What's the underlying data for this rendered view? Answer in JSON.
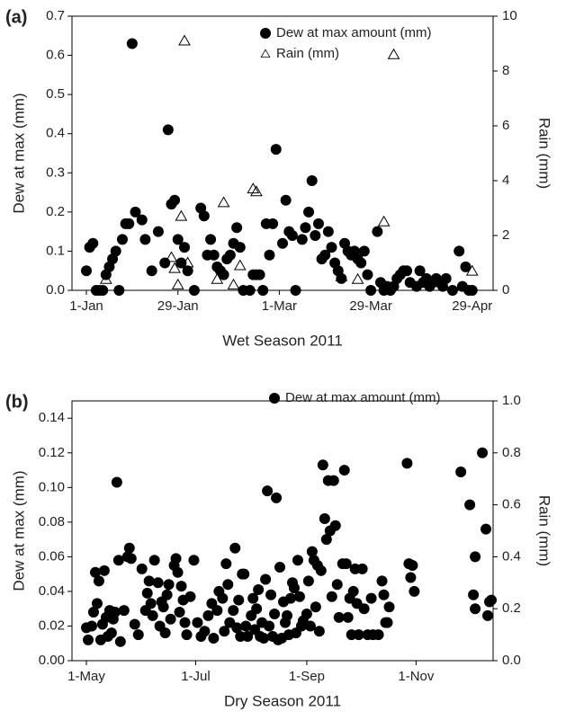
{
  "chart_data": [
    {
      "type": "scatter",
      "panel_label": "(a)",
      "x_label": "Wet Season 2011",
      "y_label": "Dew at max (mm)",
      "y2_label": "Rain (mm)",
      "xlim": [
        "2011-01-01",
        "2011-05-01"
      ],
      "xticks": [
        {
          "value": "2011-01-01",
          "label": "1-Jan"
        },
        {
          "value": "2011-01-29",
          "label": "29-Jan"
        },
        {
          "value": "2011-03-01",
          "label": "1-Mar"
        },
        {
          "value": "2011-03-29",
          "label": "29-Mar"
        },
        {
          "value": "2011-04-29",
          "label": "29-Apr"
        }
      ],
      "ylim": [
        0,
        0.7
      ],
      "yticks": [
        {
          "value": 0,
          "label": "0.0"
        },
        0.1,
        0.2,
        0.3,
        0.4,
        0.5,
        0.6,
        0.7
      ],
      "y2lim": [
        0,
        10
      ],
      "y2ticks": [
        0,
        2,
        4,
        6,
        8,
        10
      ],
      "series": [
        {
          "name": "Dew at max amount (mm)",
          "color": "#000000",
          "marker": "circle",
          "x": [
            "2011-01-01",
            "2011-01-02",
            "2011-01-03",
            "2011-01-04",
            "2011-01-05",
            "2011-01-06",
            "2011-01-07",
            "2011-01-08",
            "2011-01-09",
            "2011-01-10",
            "2011-01-11",
            "2011-01-12",
            "2011-01-13",
            "2011-01-14",
            "2011-01-15",
            "2011-01-16",
            "2011-01-18",
            "2011-01-19",
            "2011-01-21",
            "2011-01-23",
            "2011-01-25",
            "2011-01-26",
            "2011-01-27",
            "2011-01-28",
            "2011-01-29",
            "2011-01-30",
            "2011-01-31",
            "2011-02-01",
            "2011-02-03",
            "2011-02-05",
            "2011-02-06",
            "2011-02-07",
            "2011-02-08",
            "2011-02-09",
            "2011-02-10",
            "2011-02-11",
            "2011-02-12",
            "2011-02-13",
            "2011-02-14",
            "2011-02-15",
            "2011-02-16",
            "2011-02-17",
            "2011-02-18",
            "2011-02-20",
            "2011-02-21",
            "2011-02-22",
            "2011-02-23",
            "2011-02-24",
            "2011-02-25",
            "2011-02-26",
            "2011-02-27",
            "2011-02-28",
            "2011-03-02",
            "2011-03-03",
            "2011-03-04",
            "2011-03-05",
            "2011-03-06",
            "2011-03-08",
            "2011-03-09",
            "2011-03-10",
            "2011-03-11",
            "2011-03-12",
            "2011-03-13",
            "2011-03-14",
            "2011-03-15",
            "2011-03-16",
            "2011-03-17",
            "2011-03-18",
            "2011-03-19",
            "2011-03-20",
            "2011-03-21",
            "2011-03-22",
            "2011-03-23",
            "2011-03-24",
            "2011-03-25",
            "2011-03-26",
            "2011-03-27",
            "2011-03-28",
            "2011-03-29",
            "2011-03-31",
            "2011-04-01",
            "2011-04-02",
            "2011-04-03",
            "2011-04-04",
            "2011-04-05",
            "2011-04-06",
            "2011-04-07",
            "2011-04-08",
            "2011-04-09",
            "2011-04-10",
            "2011-04-12",
            "2011-04-13",
            "2011-04-14",
            "2011-04-15",
            "2011-04-16",
            "2011-04-17",
            "2011-04-18",
            "2011-04-19",
            "2011-04-20",
            "2011-04-21",
            "2011-04-23",
            "2011-04-25",
            "2011-04-26",
            "2011-04-27",
            "2011-04-28",
            "2011-04-29"
          ],
          "values": [
            0.05,
            0.11,
            0.12,
            0.0,
            0.0,
            0.0,
            0.04,
            0.06,
            0.08,
            0.1,
            0.0,
            0.13,
            0.17,
            0.17,
            0.63,
            0.2,
            0.18,
            0.13,
            0.05,
            0.15,
            0.07,
            0.41,
            0.22,
            0.23,
            0.13,
            0.07,
            0.11,
            0.05,
            0.0,
            0.21,
            0.19,
            0.09,
            0.13,
            0.09,
            0.06,
            0.05,
            0.04,
            0.08,
            0.09,
            0.12,
            0.16,
            0.11,
            0.0,
            0.0,
            0.04,
            0.04,
            0.04,
            0.0,
            0.17,
            0.09,
            0.17,
            0.36,
            0.12,
            0.23,
            0.15,
            0.14,
            0.0,
            0.13,
            0.16,
            0.2,
            0.28,
            0.14,
            0.17,
            0.08,
            0.09,
            0.15,
            0.11,
            0.07,
            0.05,
            0.03,
            0.12,
            0.1,
            0.09,
            0.1,
            0.08,
            0.07,
            0.1,
            0.04,
            0.0,
            0.15,
            0.02,
            0.0,
            0.01,
            0.0,
            0.01,
            0.03,
            0.04,
            0.05,
            0.05,
            0.02,
            0.01,
            0.05,
            0.02,
            0.03,
            0.01,
            0.02,
            0.03,
            0.02,
            0.01,
            0.03,
            0.0,
            0.1,
            0.01,
            0.06,
            0.0,
            0.0
          ]
        },
        {
          "name": "Rain (mm)",
          "color": "#000000",
          "marker": "triangle-open",
          "axis": "y2",
          "x": [
            "2011-01-07",
            "2011-01-27",
            "2011-01-28",
            "2011-01-29",
            "2011-01-30",
            "2011-01-31",
            "2011-02-01",
            "2011-02-10",
            "2011-02-12",
            "2011-02-15",
            "2011-02-17",
            "2011-02-21",
            "2011-02-22",
            "2011-03-20",
            "2011-03-25",
            "2011-04-02",
            "2011-04-05",
            "2011-04-29"
          ],
          "values": [
            0.4,
            1.2,
            0.8,
            0.2,
            2.7,
            9.1,
            1.0,
            0.4,
            3.2,
            0.2,
            0.9,
            3.7,
            3.6,
            0.5,
            0.4,
            2.5,
            8.6,
            0.7
          ]
        }
      ]
    },
    {
      "type": "scatter",
      "panel_label": "(b)",
      "x_label": "Dry Season 2011",
      "y_label": "Dew at max (mm)",
      "y2_label": "Rain (mm)",
      "xlim": [
        "2011-05-01",
        "2011-12-13"
      ],
      "xticks": [
        {
          "value": "2011-05-01",
          "label": "1-May"
        },
        {
          "value": "2011-07-01",
          "label": "1-Jul"
        },
        {
          "value": "2011-09-01",
          "label": "1-Sep"
        },
        {
          "value": "2011-11-01",
          "label": "1-Nov"
        }
      ],
      "ylim": [
        0,
        0.15
      ],
      "yticks": [
        {
          "value": 0,
          "label": "0.00"
        },
        {
          "value": 0.02,
          "label": "0.02"
        },
        {
          "value": 0.04,
          "label": "0.04"
        },
        {
          "value": 0.06,
          "label": "0.06"
        },
        {
          "value": 0.08,
          "label": "0.08"
        },
        {
          "value": 0.1,
          "label": "0.10"
        },
        {
          "value": 0.12,
          "label": "0.12"
        },
        {
          "value": 0.14,
          "label": "0.14"
        }
      ],
      "y2lim": [
        0,
        1.0
      ],
      "y2ticks": [
        {
          "value": 0,
          "label": "0.0"
        },
        0.2,
        0.4,
        0.6,
        0.8,
        {
          "value": 1,
          "label": "1.0"
        }
      ],
      "series": [
        {
          "name": "Dew at max amount (mm)",
          "color": "#000000",
          "marker": "circle",
          "x": [
            "2011-05-01",
            "2011-05-02",
            "2011-05-04",
            "2011-05-05",
            "2011-05-06",
            "2011-05-07",
            "2011-05-08",
            "2011-05-09",
            "2011-05-10",
            "2011-05-11",
            "2011-05-12",
            "2011-05-13",
            "2011-05-14",
            "2011-05-15",
            "2011-05-16",
            "2011-05-17",
            "2011-05-18",
            "2011-05-19",
            "2011-05-20",
            "2011-05-22",
            "2011-05-24",
            "2011-05-25",
            "2011-05-26",
            "2011-05-28",
            "2011-05-30",
            "2011-06-01",
            "2011-06-03",
            "2011-06-04",
            "2011-06-05",
            "2011-06-06",
            "2011-06-07",
            "2011-06-08",
            "2011-06-10",
            "2011-06-11",
            "2011-06-12",
            "2011-06-13",
            "2011-06-14",
            "2011-06-15",
            "2011-06-16",
            "2011-06-17",
            "2011-06-19",
            "2011-06-20",
            "2011-06-21",
            "2011-06-22",
            "2011-06-23",
            "2011-06-24",
            "2011-06-25",
            "2011-06-26",
            "2011-06-28",
            "2011-06-30",
            "2011-07-02",
            "2011-07-04",
            "2011-07-06",
            "2011-07-08",
            "2011-07-10",
            "2011-07-11",
            "2011-07-13",
            "2011-07-14",
            "2011-07-16",
            "2011-07-17",
            "2011-07-18",
            "2011-07-19",
            "2011-07-20",
            "2011-07-22",
            "2011-07-23",
            "2011-07-24",
            "2011-07-25",
            "2011-07-26",
            "2011-07-27",
            "2011-07-28",
            "2011-07-29",
            "2011-07-30",
            "2011-08-01",
            "2011-08-02",
            "2011-08-03",
            "2011-08-04",
            "2011-08-05",
            "2011-08-06",
            "2011-08-07",
            "2011-08-08",
            "2011-08-09",
            "2011-08-10",
            "2011-08-11",
            "2011-08-12",
            "2011-08-13",
            "2011-08-14",
            "2011-08-15",
            "2011-08-16",
            "2011-08-17",
            "2011-08-18",
            "2011-08-19",
            "2011-08-20",
            "2011-08-21",
            "2011-08-22",
            "2011-08-23",
            "2011-08-24",
            "2011-08-25",
            "2011-08-26",
            "2011-08-27",
            "2011-08-28",
            "2011-08-29",
            "2011-08-30",
            "2011-09-01",
            "2011-09-02",
            "2011-09-03",
            "2011-09-04",
            "2011-09-05",
            "2011-09-06",
            "2011-09-07",
            "2011-09-08",
            "2011-09-09",
            "2011-09-10",
            "2011-09-11",
            "2011-09-12",
            "2011-09-13",
            "2011-09-14",
            "2011-09-15",
            "2011-09-16",
            "2011-09-17",
            "2011-09-18",
            "2011-09-19",
            "2011-09-21",
            "2011-09-22",
            "2011-09-23",
            "2011-09-24",
            "2011-09-25",
            "2011-09-26",
            "2011-09-27",
            "2011-09-28",
            "2011-09-29",
            "2011-09-30",
            "2011-10-02",
            "2011-10-03",
            "2011-10-05",
            "2011-10-07",
            "2011-10-08",
            "2011-10-11",
            "2011-10-13",
            "2011-10-14",
            "2011-10-15",
            "2011-10-16",
            "2011-10-17",
            "2011-10-27",
            "2011-10-28",
            "2011-10-29",
            "2011-10-30",
            "2011-10-31",
            "2011-11-26",
            "2011-12-01",
            "2011-12-03",
            "2011-12-04",
            "2011-12-04",
            "2011-12-08",
            "2011-12-10",
            "2011-12-11",
            "2011-12-12",
            "2011-12-13"
          ],
          "values": [
            0.019,
            0.012,
            0.02,
            0.028,
            0.051,
            0.033,
            0.046,
            0.012,
            0.021,
            0.052,
            0.025,
            0.014,
            0.029,
            0.016,
            0.024,
            0.028,
            0.103,
            0.058,
            0.011,
            0.029,
            0.06,
            0.065,
            0.059,
            0.021,
            0.015,
            0.053,
            0.029,
            0.039,
            0.046,
            0.033,
            0.026,
            0.058,
            0.045,
            0.02,
            0.034,
            0.031,
            0.016,
            0.038,
            0.044,
            0.024,
            0.055,
            0.059,
            0.051,
            0.028,
            0.043,
            0.035,
            0.022,
            0.015,
            0.037,
            0.058,
            0.022,
            0.014,
            0.017,
            0.026,
            0.033,
            0.013,
            0.029,
            0.04,
            0.036,
            0.017,
            0.056,
            0.044,
            0.022,
            0.029,
            0.065,
            0.019,
            0.035,
            0.014,
            0.05,
            0.05,
            0.02,
            0.014,
            0.026,
            0.036,
            0.018,
            0.03,
            0.041,
            0.014,
            0.022,
            0.013,
            0.047,
            0.098,
            0.02,
            0.038,
            0.014,
            0.027,
            0.094,
            0.012,
            0.054,
            0.013,
            0.034,
            0.022,
            0.026,
            0.015,
            0.036,
            0.045,
            0.042,
            0.016,
            0.058,
            0.037,
            0.02,
            0.023,
            0.027,
            0.046,
            0.02,
            0.063,
            0.058,
            0.031,
            0.055,
            0.017,
            0.052,
            0.113,
            0.082,
            0.07,
            0.104,
            0.075,
            0.037,
            0.104,
            0.078,
            0.044,
            0.025,
            0.056,
            0.11,
            0.056,
            0.025,
            0.036,
            0.015,
            0.04,
            0.053,
            0.033,
            0.015,
            0.053,
            0.03,
            0.015,
            0.036,
            0.015,
            0.015,
            0.046,
            0.038,
            0.022,
            0.022,
            0.031,
            0.114,
            0.056,
            0.048,
            0.055,
            0.04,
            0.109,
            0.09,
            0.038,
            0.03,
            0.06,
            0.12,
            0.076,
            0.026,
            0.034,
            0.035
          ]
        }
      ]
    }
  ]
}
